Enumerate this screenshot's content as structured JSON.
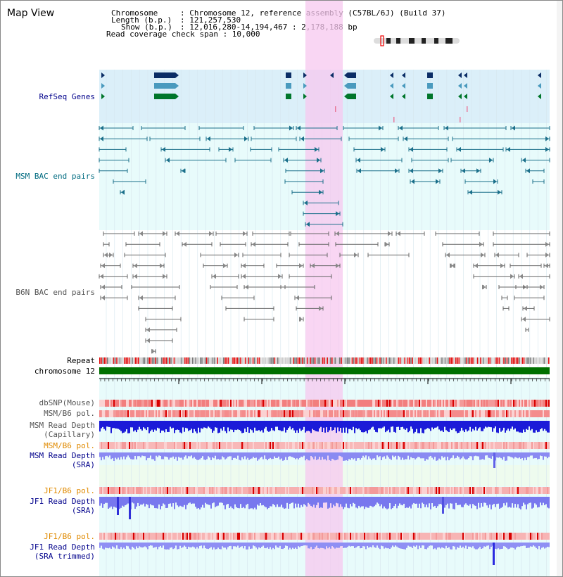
{
  "title": "Map View",
  "info": {
    "chromosome_key": "Chromosome",
    "chromosome_val": ": Chromosome 12, reference assembly (C57BL/6J) (Build 37)",
    "length_key": "Length (b.p.)",
    "length_val": ": 121,257,530",
    "show_key": "Show (b.p.)",
    "show_val": ": 12,016,280-14,194,467 : 2,178,188 bp",
    "coverage_line": "Read coverage check span : 10,000"
  },
  "tracks": {
    "refseq": "RefSeq Genes",
    "msm_bac": "MSM BAC end pairs",
    "b6n_bac": "B6N BAC end pairs",
    "repeat": "Repeat",
    "chromosome": "chromosome 12",
    "dbsnp": "dbSNP(Mouse)",
    "msm_b6_pol_1": "MSM/B6 pol.",
    "msm_read_depth_cap_1": "MSM Read Depth",
    "msm_read_depth_cap_2": "(Capillary)",
    "msm_b6_pol_2": "MSM/B6 pol.",
    "msm_read_depth_sra_1": "MSM Read Depth",
    "msm_read_depth_sra_2": "(SRA)",
    "jf1_b6_pol_1": "JF1/B6 pol.",
    "jf1_read_depth_1": "JF1 Read Depth",
    "jf1_read_depth_2": "(SRA)",
    "jf1_b6_pol_2": "JF1/B6 pol.",
    "jf1_read_depth_trim_1": "JF1 Read Depth",
    "jf1_read_depth_trim_2": "(SRA trimmed)"
  },
  "ruler": {
    "ticks": [
      "12400000",
      "12800000",
      "13200000",
      "13600000",
      "14000000"
    ]
  },
  "colors": {
    "refseq_bg": "#dbeff9",
    "msm_bg": "#e8fbfb",
    "highlight": "#f7c8ef",
    "navy_gene": "#0b2d66",
    "light_gene": "#4a9abe",
    "green_gene": "#00762b",
    "msm_pair": "#1a6f8a",
    "b6n_pair": "#666666",
    "chrom_green": "#007000",
    "snp_red": "#f07070",
    "depth_blue": "#1b1bd8",
    "depth_light": "#8080f0"
  }
}
